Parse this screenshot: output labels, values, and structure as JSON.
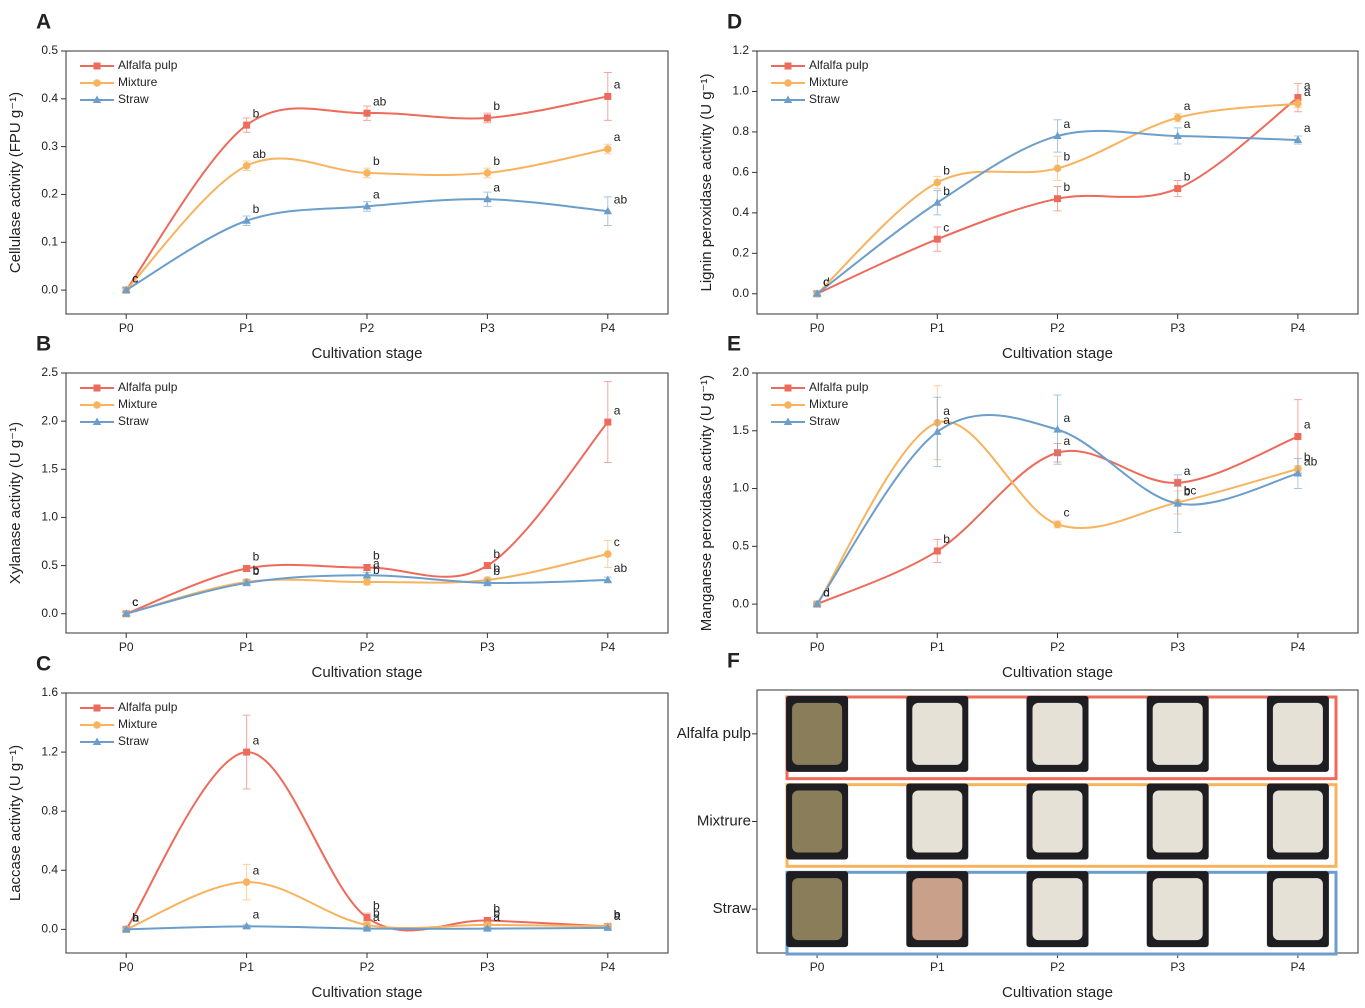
{
  "chart_data": [
    {
      "type": "line",
      "panel": "A",
      "xlabel": "Cultivation stage",
      "ylabel": "Cellulase activity (FPU g⁻¹)",
      "categories": [
        "P0",
        "P1",
        "P2",
        "P3",
        "P4"
      ],
      "ylim": [
        -0.05,
        0.5
      ],
      "yticks": [
        {
          "value": 0,
          "label": "0.0"
        },
        0.1,
        0.2,
        0.3,
        0.4,
        0.5
      ],
      "legend": "upper left",
      "series": [
        {
          "name": "Alfalfa pulp",
          "color": "#ee6a5b",
          "values": [
            0,
            0.345,
            0.37,
            0.36,
            0.405
          ],
          "errors": [
            0.005,
            0.015,
            0.015,
            0.01,
            0.05
          ],
          "letters": [
            "c",
            "b",
            "ab",
            "b",
            "a"
          ]
        },
        {
          "name": "Mixture",
          "color": "#f8b35e",
          "values": [
            0,
            0.26,
            0.245,
            0.245,
            0.295
          ],
          "errors": [
            0.005,
            0.01,
            0.01,
            0.01,
            0.01
          ],
          "letters": [
            "c",
            "ab",
            "b",
            "b",
            "a"
          ]
        },
        {
          "name": "Straw",
          "color": "#6c9ecb",
          "values": [
            0,
            0.145,
            0.175,
            0.19,
            0.165
          ],
          "errors": [
            0.005,
            0.01,
            0.01,
            0.015,
            0.03
          ],
          "letters": [
            "c",
            "b",
            "a",
            "a",
            "ab"
          ]
        }
      ]
    },
    {
      "type": "line",
      "panel": "B",
      "xlabel": "Cultivation stage",
      "ylabel": "Xylanase activity (U g⁻¹)",
      "categories": [
        "P0",
        "P1",
        "P2",
        "P3",
        "P4"
      ],
      "ylim": [
        -0.2,
        2.5
      ],
      "yticks": [
        {
          "value": 0,
          "label": "0.0"
        },
        0.5,
        {
          "value": 1,
          "label": "1.0"
        },
        1.5,
        {
          "value": 2,
          "label": "2.0"
        },
        2.5
      ],
      "legend": "upper left",
      "series": [
        {
          "name": "Alfalfa pulp",
          "color": "#ee6a5b",
          "values": [
            0,
            0.47,
            0.48,
            0.5,
            1.99
          ],
          "errors": [
            0.02,
            0.03,
            0.03,
            0.03,
            0.42
          ],
          "letters": [
            "c",
            "b",
            "b",
            "b",
            "a"
          ]
        },
        {
          "name": "Mixture",
          "color": "#f8b35e",
          "values": [
            0,
            0.33,
            0.33,
            0.35,
            0.62
          ],
          "errors": [
            0.02,
            0.03,
            0.03,
            0.03,
            0.14
          ],
          "letters": [
            "c",
            "b",
            "b",
            "b",
            "c"
          ]
        },
        {
          "name": "Straw",
          "color": "#6c9ecb",
          "values": [
            0,
            0.32,
            0.4,
            0.32,
            0.35
          ],
          "errors": [
            0.02,
            0.03,
            0.03,
            0.03,
            0.03
          ],
          "letters": [
            "c",
            "b",
            "a",
            "b",
            "ab"
          ]
        }
      ]
    },
    {
      "type": "line",
      "panel": "C",
      "xlabel": "Cultivation stage",
      "ylabel": "Laccase activity (U g⁻¹)",
      "categories": [
        "P0",
        "P1",
        "P2",
        "P3",
        "P4"
      ],
      "ylim": [
        -0.16,
        1.6
      ],
      "yticks": [
        {
          "value": 0,
          "label": "0.0"
        },
        0.4,
        0.8,
        1.2,
        1.6
      ],
      "legend": "upper left",
      "series": [
        {
          "name": "Alfalfa pulp",
          "color": "#ee6a5b",
          "values": [
            0,
            1.2,
            0.08,
            0.06,
            0.02
          ],
          "errors": [
            0.01,
            0.25,
            0.03,
            0.02,
            0.01
          ],
          "letters": [
            "b",
            "a",
            "b",
            "b",
            "b"
          ]
        },
        {
          "name": "Mixture",
          "color": "#f8b35e",
          "values": [
            0,
            0.32,
            0.03,
            0.03,
            0.02
          ],
          "errors": [
            0.01,
            0.12,
            0.02,
            0.02,
            0.01
          ],
          "letters": [
            "b",
            "a",
            "b",
            "b",
            "b"
          ]
        },
        {
          "name": "Straw",
          "color": "#6c9ecb",
          "values": [
            0,
            0.02,
            0.005,
            0.005,
            0.01
          ],
          "errors": [
            0.01,
            0.01,
            0.01,
            0.01,
            0.01
          ],
          "letters": [
            "a",
            "a",
            "a",
            "a",
            "a"
          ]
        }
      ]
    },
    {
      "type": "line",
      "panel": "D",
      "xlabel": "Cultivation stage",
      "ylabel": "Lignin peroxidase activity (U g⁻¹)",
      "categories": [
        "P0",
        "P1",
        "P2",
        "P3",
        "P4"
      ],
      "ylim": [
        -0.1,
        1.2
      ],
      "yticks": [
        {
          "value": 0,
          "label": "0.0"
        },
        0.2,
        0.4,
        0.6,
        0.8,
        {
          "value": 1,
          "label": "1.0"
        },
        1.2
      ],
      "legend": "upper left",
      "series": [
        {
          "name": "Alfalfa pulp",
          "color": "#ee6a5b",
          "values": [
            0,
            0.27,
            0.47,
            0.52,
            0.97
          ],
          "errors": [
            0.01,
            0.06,
            0.06,
            0.04,
            0.07
          ],
          "letters": [
            "d",
            "c",
            "b",
            "b",
            "a"
          ]
        },
        {
          "name": "Mixture",
          "color": "#f8b35e",
          "values": [
            0,
            0.55,
            0.62,
            0.87,
            0.94
          ],
          "errors": [
            0.01,
            0.03,
            0.06,
            0.02,
            0.02
          ],
          "letters": [
            "c",
            "b",
            "b",
            "a",
            "a"
          ]
        },
        {
          "name": "Straw",
          "color": "#6c9ecb",
          "values": [
            0,
            0.45,
            0.78,
            0.78,
            0.76
          ],
          "errors": [
            0.01,
            0.06,
            0.08,
            0.04,
            0.02
          ],
          "letters": [
            "c",
            "b",
            "a",
            "a",
            "a"
          ]
        }
      ]
    },
    {
      "type": "line",
      "panel": "E",
      "xlabel": "Cultivation stage",
      "ylabel": "Manganese peroxidase activity (U g⁻¹)",
      "categories": [
        "P0",
        "P1",
        "P2",
        "P3",
        "P4"
      ],
      "ylim": [
        -0.25,
        2.0
      ],
      "yticks": [
        {
          "value": 0,
          "label": "0.0"
        },
        0.5,
        {
          "value": 1,
          "label": "1.0"
        },
        1.5,
        {
          "value": 2,
          "label": "2.0"
        }
      ],
      "legend": "upper left",
      "series": [
        {
          "name": "Alfalfa pulp",
          "color": "#ee6a5b",
          "values": [
            0,
            0.46,
            1.31,
            1.05,
            1.45
          ],
          "errors": [
            0.01,
            0.1,
            0.08,
            0.03,
            0.32
          ],
          "letters": [
            "c",
            "b",
            "a",
            "a",
            "a"
          ]
        },
        {
          "name": "Mixture",
          "color": "#f8b35e",
          "values": [
            0,
            1.57,
            0.69,
            0.88,
            1.17
          ],
          "errors": [
            0.01,
            0.32,
            0.03,
            0.1,
            0.03
          ],
          "letters": [
            "d",
            "a",
            "c",
            "bc",
            "b"
          ]
        },
        {
          "name": "Straw",
          "color": "#6c9ecb",
          "values": [
            0,
            1.49,
            1.51,
            0.87,
            1.13
          ],
          "errors": [
            0.01,
            0.3,
            0.3,
            0.25,
            0.13
          ],
          "letters": [
            "c",
            "a",
            "a",
            "b",
            "ab"
          ]
        }
      ]
    },
    {
      "type": "photo_grid",
      "panel": "F",
      "xlabel": "Cultivation stage",
      "categories": [
        "P0",
        "P1",
        "P2",
        "P3",
        "P4"
      ],
      "rows": [
        "Alfalfa pulp",
        "Mixtrure",
        "Straw"
      ],
      "row_colors": [
        "#ee6a5b",
        "#f8b35e",
        "#6c9ecb"
      ]
    }
  ]
}
